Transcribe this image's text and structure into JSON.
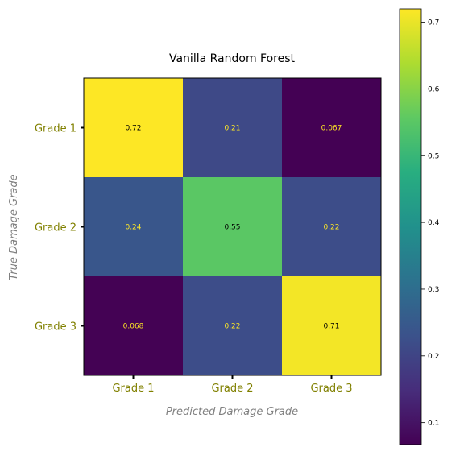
{
  "chart_data": {
    "type": "heatmap",
    "title": "Vanilla Random Forest",
    "xlabel": "Predicted Damage Grade",
    "ylabel": "True Damage Grade",
    "x_categories": [
      "Grade 1",
      "Grade 2",
      "Grade 3"
    ],
    "y_categories": [
      "Grade 1",
      "Grade 2",
      "Grade 3"
    ],
    "values": [
      [
        0.72,
        0.21,
        0.067
      ],
      [
        0.24,
        0.55,
        0.22
      ],
      [
        0.068,
        0.22,
        0.71
      ]
    ],
    "labels": [
      [
        "0.72",
        "0.21",
        "0.067"
      ],
      [
        "0.24",
        "0.55",
        "0.22"
      ],
      [
        "0.068",
        "0.22",
        "0.71"
      ]
    ],
    "colormap": "viridis",
    "colorbar": {
      "vmin": 0.067,
      "vmax": 0.72,
      "ticks": [
        0.1,
        0.2,
        0.3,
        0.4,
        0.5,
        0.6,
        0.7
      ],
      "tick_labels": [
        "0.1",
        "0.2",
        "0.3",
        "0.4",
        "0.5",
        "0.6",
        "0.7"
      ]
    },
    "tick_label_color": "#808000",
    "axis_label_color": "#808080",
    "grid": false
  }
}
